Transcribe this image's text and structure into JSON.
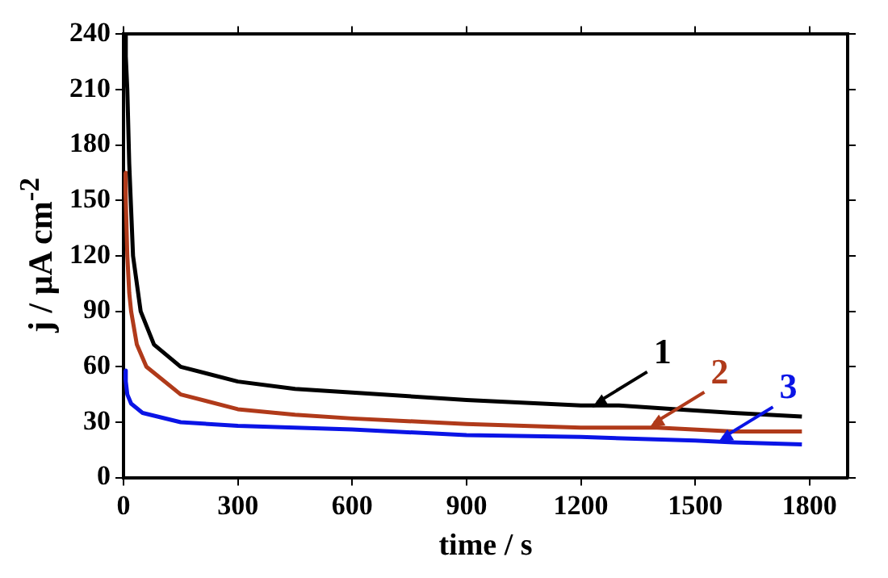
{
  "chart_data": {
    "type": "line",
    "xlabel": "time / s",
    "ylabel": "j / μA cm$^{-2}$",
    "xlim": [
      0,
      1900
    ],
    "ylim": [
      0,
      240
    ],
    "xticks": [
      0,
      300,
      600,
      900,
      1200,
      1500,
      1800
    ],
    "yticks": [
      0,
      30,
      60,
      90,
      120,
      150,
      180,
      210,
      240
    ],
    "grid": false,
    "legend": false,
    "marker": "none",
    "line_style": "solid",
    "series": [
      {
        "color": "#000000",
        "x": [
          3,
          6,
          10,
          15,
          25,
          45,
          80,
          150,
          300,
          450,
          600,
          900,
          1200,
          1300,
          1450,
          1600,
          1780
        ],
        "values": [
          240,
          228,
          210,
          170,
          120,
          90,
          72,
          60,
          52,
          48,
          46,
          42,
          39,
          39,
          37,
          35,
          33
        ]
      },
      {
        "color": "#b03a1a",
        "x": [
          3,
          6,
          10,
          15,
          20,
          35,
          60,
          150,
          300,
          450,
          600,
          900,
          1200,
          1400,
          1600,
          1780
        ],
        "values": [
          165,
          150,
          120,
          100,
          90,
          72,
          60,
          45,
          37,
          34,
          32,
          29,
          27,
          27,
          25,
          25
        ]
      },
      {
        "color": "#0a14e6",
        "x": [
          3,
          6,
          10,
          20,
          50,
          150,
          300,
          600,
          900,
          1200,
          1500,
          1600,
          1780
        ],
        "values": [
          58,
          52,
          45,
          40,
          35,
          30,
          28,
          26,
          23,
          22,
          20,
          19,
          18
        ]
      }
    ],
    "annotations": [
      {
        "text": "1",
        "x": 1230,
        "y": 38
      },
      {
        "text": "2",
        "x": 1380,
        "y": 27
      },
      {
        "text": "3",
        "x": 1560,
        "y": 19
      }
    ]
  }
}
